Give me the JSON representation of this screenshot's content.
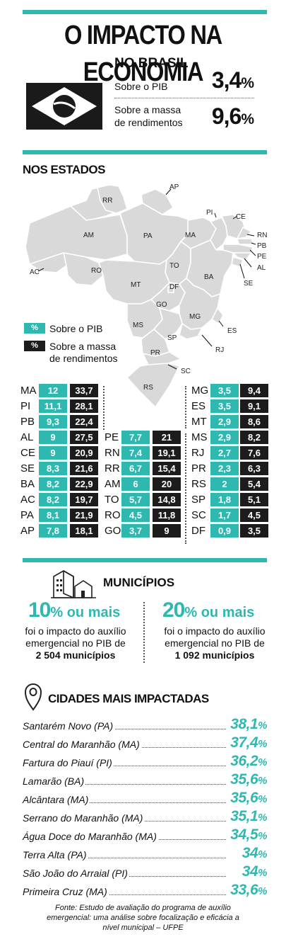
{
  "header": {
    "title": "O IMPACTO NA ECONOMIA"
  },
  "brasil": {
    "title": "NO BRASIL",
    "pib_label": "Sobre o PIB",
    "pib_value": "3,4",
    "massa_label_1": "Sobre a massa",
    "massa_label_2": "de rendimentos",
    "massa_value": "9,6",
    "percent": "%"
  },
  "estados": {
    "title": "NOS ESTADOS",
    "legend_pib": "Sobre o PIB",
    "legend_massa_1": "Sobre a massa",
    "legend_massa_2": "de rendimentos",
    "legend_symbol": "%",
    "map_labels": [
      "RR",
      "AP",
      "AM",
      "PA",
      "MA",
      "PI",
      "CE",
      "RN",
      "PB",
      "PE",
      "AL",
      "SE",
      "AC",
      "RO",
      "TO",
      "BA",
      "MT",
      "DF",
      "GO",
      "MG",
      "ES",
      "MS",
      "SP",
      "RJ",
      "PR",
      "SC",
      "RS"
    ],
    "col1": [
      {
        "uf": "MA",
        "pib": "12",
        "massa": "33,7"
      },
      {
        "uf": "PI",
        "pib": "11,1",
        "massa": "28,1"
      },
      {
        "uf": "PB",
        "pib": "9,3",
        "massa": "22,4"
      },
      {
        "uf": "AL",
        "pib": "9",
        "massa": "27,5"
      },
      {
        "uf": "CE",
        "pib": "9",
        "massa": "20,9"
      },
      {
        "uf": "SE",
        "pib": "8,3",
        "massa": "21,6"
      },
      {
        "uf": "BA",
        "pib": "8,2",
        "massa": "22,9"
      },
      {
        "uf": "AC",
        "pib": "8,2",
        "massa": "19,7"
      },
      {
        "uf": "PA",
        "pib": "8,1",
        "massa": "21,9"
      },
      {
        "uf": "AP",
        "pib": "7,8",
        "massa": "18,1"
      }
    ],
    "col2": [
      {
        "uf": "PE",
        "pib": "7,7",
        "massa": "21"
      },
      {
        "uf": "RN",
        "pib": "7,4",
        "massa": "19,1"
      },
      {
        "uf": "RR",
        "pib": "6,7",
        "massa": "15,4"
      },
      {
        "uf": "AM",
        "pib": "6",
        "massa": "20"
      },
      {
        "uf": "TO",
        "pib": "5,7",
        "massa": "14,8"
      },
      {
        "uf": "RO",
        "pib": "4,5",
        "massa": "11,8"
      },
      {
        "uf": "GO",
        "pib": "3,7",
        "massa": "9"
      }
    ],
    "col3": [
      {
        "uf": "MG",
        "pib": "3,5",
        "massa": "9,4"
      },
      {
        "uf": "ES",
        "pib": "3,5",
        "massa": "9,1"
      },
      {
        "uf": "MT",
        "pib": "2,9",
        "massa": "8,6"
      },
      {
        "uf": "MS",
        "pib": "2,9",
        "massa": "8,2"
      },
      {
        "uf": "RJ",
        "pib": "2,7",
        "massa": "7,6"
      },
      {
        "uf": "PR",
        "pib": "2,3",
        "massa": "6,3"
      },
      {
        "uf": "RS",
        "pib": "2",
        "massa": "5,4"
      },
      {
        "uf": "SP",
        "pib": "1,8",
        "massa": "5,1"
      },
      {
        "uf": "SC",
        "pib": "1,7",
        "massa": "4,5"
      },
      {
        "uf": "DF",
        "pib": "0,9",
        "massa": "3,5"
      }
    ]
  },
  "municipios": {
    "title": "MUNICÍPIOS",
    "left_big": "10",
    "left_suffix": "% ou mais",
    "left_l1": "foi o impacto do auxílio",
    "left_l2": "emergencial no PIB de",
    "left_l3": "2 504 municípios",
    "right_big": "20",
    "right_suffix": "% ou mais",
    "right_l1": "foi o impacto do auxílio",
    "right_l2": "emergencial no PIB de",
    "right_l3": "1 092 municípios"
  },
  "cidades": {
    "title": "CIDADES MAIS IMPACTADAS",
    "items": [
      {
        "name": "Santarém Novo (PA)",
        "value": "38,1"
      },
      {
        "name": "Central do Maranhão (MA)",
        "value": "37,4"
      },
      {
        "name": "Fartura do Piauí (PI)",
        "value": "36,2"
      },
      {
        "name": "Lamarão (BA)",
        "value": "35,6"
      },
      {
        "name": "Alcântara (MA)",
        "value": "35,6"
      },
      {
        "name": "Serrano do Maranhão (MA)",
        "value": "35,1"
      },
      {
        "name": "Água Doce do Maranhão (MA)",
        "value": "34,5"
      },
      {
        "name": "Terra Alta (PA)",
        "value": "34"
      },
      {
        "name": "São João do Arraial (PI)",
        "value": "34"
      },
      {
        "name": "Primeira Cruz (MA)",
        "value": "33,6"
      }
    ]
  },
  "fonte": "Fonte: Estudo de avaliação do programa de auxílio emergencial: uma análise sobre focalização e eficácia a nível municipal – UFPE",
  "colors": {
    "accent": "#2fb8b0",
    "dark": "#1c1c1c",
    "map_fill": "#d9d9d9"
  }
}
